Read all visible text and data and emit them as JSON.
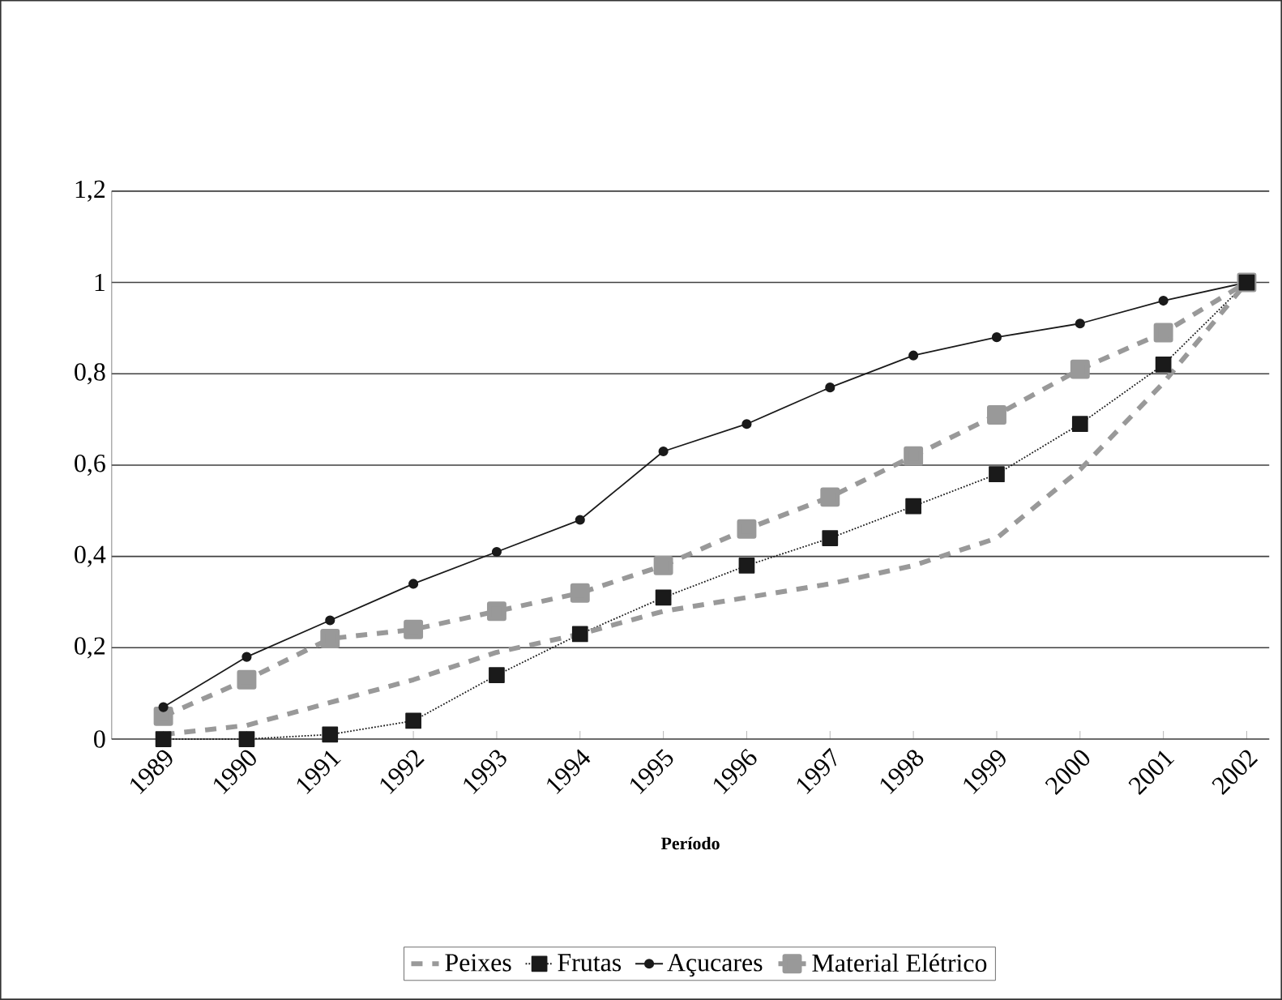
{
  "chart_data": {
    "type": "line",
    "xlabel": "Período",
    "categories": [
      "1989",
      "1990",
      "1991",
      "1992",
      "1993",
      "1994",
      "1995",
      "1996",
      "1997",
      "1998",
      "1999",
      "2000",
      "2001",
      "2002"
    ],
    "ylim": [
      0,
      1.2
    ],
    "yticks": [
      0,
      {
        "value": 0.2,
        "label": "0,2"
      },
      {
        "value": 0.4,
        "label": "0,4"
      },
      {
        "value": 0.6,
        "label": "0,6"
      },
      {
        "value": 0.8,
        "label": "0,8"
      },
      1,
      {
        "value": 1.2,
        "label": "1,2"
      }
    ],
    "grid": "y",
    "legend": "bottom",
    "series": [
      {
        "name": "Peixes",
        "color": "#999999",
        "line_style": "dashed",
        "marker": "none",
        "values": [
          0.01,
          0.03,
          0.08,
          0.13,
          0.19,
          0.23,
          0.28,
          0.31,
          0.34,
          0.38,
          0.44,
          0.59,
          0.78,
          1.0
        ]
      },
      {
        "name": "Frutas",
        "color": "#1a1a1a",
        "line_style": "dotted",
        "marker": "square",
        "values": [
          0,
          0,
          0.01,
          0.04,
          0.14,
          0.23,
          0.31,
          0.38,
          0.44,
          0.51,
          0.58,
          0.69,
          0.82,
          1.0
        ]
      },
      {
        "name": "Açucares",
        "color": "#1a1a1a",
        "line_style": "solid",
        "marker": "circle",
        "values": [
          0.07,
          0.18,
          0.26,
          0.34,
          0.41,
          0.48,
          0.63,
          0.69,
          0.77,
          0.84,
          0.88,
          0.91,
          0.96,
          1.0
        ]
      },
      {
        "name": "Material Elétrico",
        "color": "#999999",
        "line_style": "dashed",
        "marker": "square",
        "values": [
          0.05,
          0.13,
          0.22,
          0.24,
          0.28,
          0.32,
          0.38,
          0.46,
          0.53,
          0.62,
          0.71,
          0.81,
          0.89,
          1.0
        ]
      }
    ]
  }
}
